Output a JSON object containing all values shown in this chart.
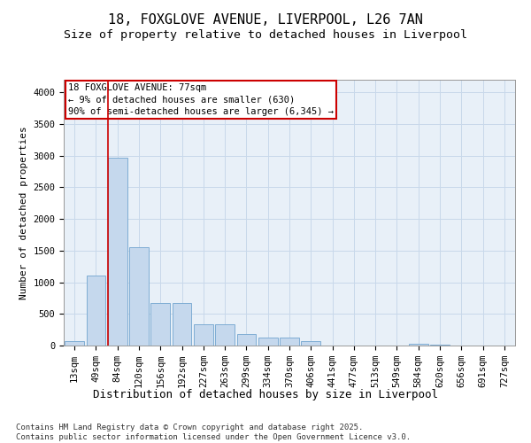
{
  "title_line1": "18, FOXGLOVE AVENUE, LIVERPOOL, L26 7AN",
  "title_line2": "Size of property relative to detached houses in Liverpool",
  "xlabel": "Distribution of detached houses by size in Liverpool",
  "ylabel": "Number of detached properties",
  "categories": [
    "13sqm",
    "49sqm",
    "84sqm",
    "120sqm",
    "156sqm",
    "192sqm",
    "227sqm",
    "263sqm",
    "299sqm",
    "334sqm",
    "370sqm",
    "406sqm",
    "441sqm",
    "477sqm",
    "513sqm",
    "549sqm",
    "584sqm",
    "620sqm",
    "656sqm",
    "691sqm",
    "727sqm"
  ],
  "values": [
    65,
    1100,
    2970,
    1560,
    670,
    670,
    330,
    330,
    185,
    120,
    120,
    75,
    0,
    0,
    0,
    0,
    30,
    15,
    0,
    0,
    0
  ],
  "bar_color": "#c5d8ed",
  "bar_edge_color": "#7fadd4",
  "grid_color": "#c8d8ea",
  "background_color": "#e8f0f8",
  "vline_color": "#cc0000",
  "annotation_title": "18 FOXGLOVE AVENUE: 77sqm",
  "annotation_line1": "← 9% of detached houses are smaller (630)",
  "annotation_line2": "90% of semi-detached houses are larger (6,345) →",
  "annotation_box_color": "#cc0000",
  "footer_line1": "Contains HM Land Registry data © Crown copyright and database right 2025.",
  "footer_line2": "Contains public sector information licensed under the Open Government Licence v3.0.",
  "ylim": [
    0,
    4200
  ],
  "yticks": [
    0,
    500,
    1000,
    1500,
    2000,
    2500,
    3000,
    3500,
    4000
  ],
  "title_fontsize": 11,
  "subtitle_fontsize": 9.5,
  "ylabel_fontsize": 8,
  "xlabel_fontsize": 9,
  "tick_fontsize": 7.5,
  "footer_fontsize": 6.5
}
